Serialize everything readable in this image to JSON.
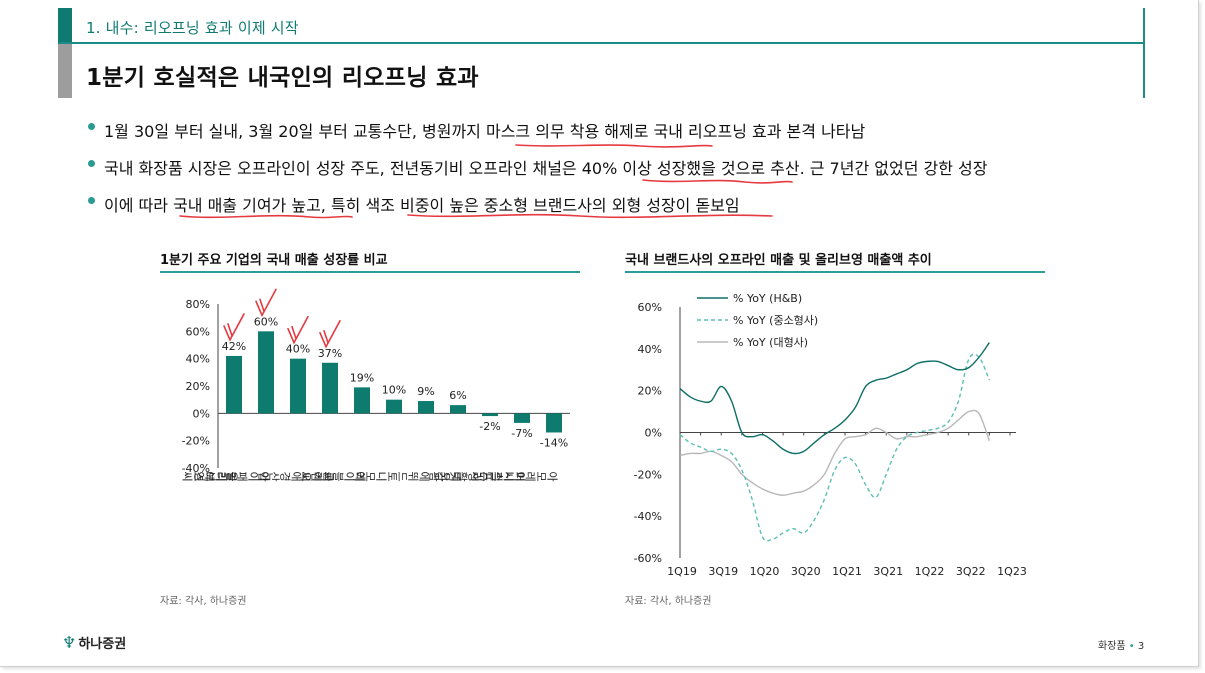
{
  "section": {
    "label": "1. 내수: 리오프닝 효과 이제 시작"
  },
  "title": "1분기 호실적은 내국인의 리오프닝 효과",
  "bullets": [
    "1월 30일 부터 실내, 3월 20일 부터 교통수단, 병원까지 마스크 의무 착용 해제로 국내 리오프닝 효과 본격 나타남",
    "국내 화장품 시장은 오프라인이 성장 주도, 전년동기비 오프라인 채널은 40% 이상 성장했을 것으로 추산. 근 7년간 없었던 강한 성장",
    "이에 따라 국내 매출 기여가 높고, 특히 색조 비중이 높은 중소형 브랜드사의 외형 성장이 돋보임"
  ],
  "left_chart": {
    "title": "1분기 주요 기업의 국내 매출 성장률 비교",
    "source": "자료: 각사, 하나증권"
  },
  "right_chart": {
    "title": "국내 브랜드사의 오프라인 매출 및 올리브영 매출액 추이",
    "source": "자료: 각사, 하나증권"
  },
  "footer": {
    "logo": "하나증권",
    "page_label": "화장품",
    "page_number": "3"
  },
  "colors": {
    "accent": "#0f7a72",
    "bar": "#0f7a6e",
    "annotation": "#e53a40",
    "gray_line": "#b8b8b8"
  },
  "chart_data": [
    {
      "type": "bar",
      "title": "1분기 주요 기업의 국내 매출 성장률 비교",
      "categories": [
        "올리브영",
        "아이패밀리에스씨",
        "애경산업",
        "클리오",
        "에이블씨엔씨",
        "토니모리",
        "에뛰드",
        "네오팜",
        "LG생활건강",
        "이니스프리",
        "아모레퍼시픽"
      ],
      "values": [
        42,
        60,
        40,
        37,
        19,
        10,
        9,
        6,
        -2,
        -7,
        -14
      ],
      "data_labels": [
        "42%",
        "60%",
        "40%",
        "37%",
        "19%",
        "10%",
        "9%",
        "6%",
        "-2%",
        "-7%",
        "-14%"
      ],
      "ylim": [
        -40,
        80
      ],
      "yticks": [
        "80%",
        "60%",
        "40%",
        "20%",
        "0%",
        "-20%",
        "-40%"
      ],
      "ytick_values": [
        80,
        60,
        40,
        20,
        0,
        -20,
        -40
      ],
      "xlabel": "",
      "ylabel": "",
      "grid": false
    },
    {
      "type": "line",
      "title": "국내 브랜드사의 오프라인 매출 및 올리브영 매출액 추이",
      "x_ticks": [
        "1Q19",
        "3Q19",
        "1Q20",
        "3Q20",
        "1Q21",
        "3Q21",
        "1Q22",
        "3Q22",
        "1Q23"
      ],
      "ylim": [
        -60,
        60
      ],
      "yticks": [
        "60%",
        "40%",
        "20%",
        "0%",
        "-20%",
        "-40%",
        "-60%"
      ],
      "ytick_values": [
        60,
        40,
        20,
        0,
        -20,
        -40,
        -60
      ],
      "legend_position": "top-left",
      "series": [
        {
          "name": "% YoY (H&B)",
          "style": "solid",
          "color": "#0f6e66",
          "x": [
            0,
            0.5,
            1,
            1.5,
            2,
            2.5,
            3,
            3.5,
            4,
            4.5,
            5,
            5.5,
            6,
            6.5,
            7,
            7.5,
            8,
            8.5,
            9,
            9.5,
            10,
            10.5,
            11,
            11.5,
            12,
            12.5,
            13,
            13.5,
            14,
            14.5,
            15,
            15.5,
            16,
            16.5
          ],
          "y": [
            21,
            17,
            15,
            15,
            22,
            15,
            0,
            -2,
            -1,
            -4,
            -8,
            -10,
            -9,
            -5,
            -1,
            2,
            6,
            12,
            22,
            25,
            26,
            28,
            30,
            33,
            34,
            34,
            32,
            30,
            31,
            36,
            43,
            null,
            null,
            null
          ]
        },
        {
          "name": "% YoY (중소형사)",
          "style": "dashed",
          "color": "#5cc0b4",
          "x": [
            0,
            0.5,
            1,
            1.5,
            2,
            2.5,
            3,
            3.5,
            4,
            4.5,
            5,
            5.5,
            6,
            6.5,
            7,
            7.5,
            8,
            8.5,
            9,
            9.5,
            10,
            10.5,
            11,
            11.5,
            12,
            12.5,
            13,
            13.5,
            14,
            14.5,
            15
          ],
          "y": [
            -1,
            -5,
            -7,
            -9,
            -8,
            -10,
            -18,
            -32,
            -50,
            -51,
            -48,
            -46,
            -48,
            -42,
            -32,
            -18,
            -12,
            -15,
            -25,
            -31,
            -20,
            -8,
            -2,
            0,
            1,
            2,
            5,
            15,
            35,
            36,
            25
          ]
        },
        {
          "name": "% YoY (대형사)",
          "style": "solid",
          "color": "#b8b8b8",
          "x": [
            0,
            0.5,
            1,
            1.5,
            2,
            2.5,
            3,
            3.5,
            4,
            4.5,
            5,
            5.5,
            6,
            6.5,
            7,
            7.5,
            8,
            8.5,
            9,
            9.5,
            10,
            10.5,
            11,
            11.5,
            12,
            12.5,
            13,
            13.5,
            14,
            14.5,
            15
          ],
          "y": [
            -11,
            -10,
            -10,
            -9,
            -11,
            -14,
            -20,
            -24,
            -27,
            -29,
            -30,
            -29,
            -28,
            -25,
            -20,
            -10,
            -3,
            -2,
            -1,
            2,
            0,
            -3,
            -2,
            -2,
            -1,
            0,
            2,
            6,
            10,
            9,
            -4
          ]
        }
      ]
    }
  ]
}
